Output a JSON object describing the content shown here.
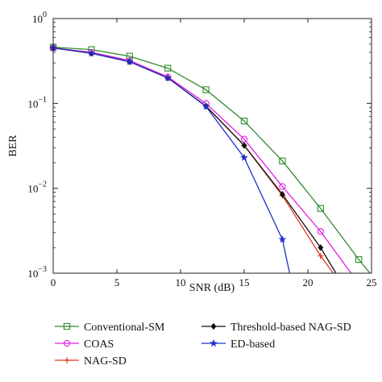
{
  "chart_data": {
    "type": "line",
    "xlabel": "SNR (dB)",
    "ylabel": "BER",
    "xlim": [
      0,
      25
    ],
    "ylim": [
      0.001,
      1
    ],
    "yscale": "log",
    "grid": false,
    "legend_position": "bottom",
    "x_ticks": [
      0,
      5,
      10,
      15,
      20,
      25
    ],
    "x_tick_labels": [
      "0",
      "5",
      "10",
      "15",
      "20",
      "25"
    ],
    "y_ticks": [
      0.001,
      0.01,
      0.1,
      1
    ],
    "y_tick_labels": [
      {
        "base": "10",
        "exp": "−3"
      },
      {
        "base": "10",
        "exp": "−2"
      },
      {
        "base": "10",
        "exp": "−1"
      },
      {
        "base": "10",
        "exp": "0"
      }
    ],
    "series": [
      {
        "name": "Conventional-SM",
        "color": "#2e8b2e",
        "marker": "square",
        "x": [
          0,
          3,
          6,
          9,
          12,
          15,
          18,
          21,
          24,
          25
        ],
        "y": [
          0.46,
          0.43,
          0.36,
          0.26,
          0.145,
          0.062,
          0.021,
          0.0058,
          0.00145,
          0.00095
        ],
        "marker_x": [
          0,
          3,
          6,
          9,
          12,
          15,
          18,
          21,
          24
        ],
        "marker_y": [
          0.46,
          0.43,
          0.36,
          0.26,
          0.145,
          0.062,
          0.021,
          0.0058,
          0.00145
        ]
      },
      {
        "name": "COAS",
        "color": "#e020e0",
        "marker": "circle",
        "x": [
          0,
          3,
          6,
          9,
          12,
          15,
          18,
          21,
          23.5
        ],
        "y": [
          0.45,
          0.4,
          0.32,
          0.205,
          0.1,
          0.038,
          0.0105,
          0.0031,
          0.00095
        ],
        "marker_x": [
          0,
          3,
          6,
          9,
          12,
          15,
          18,
          21
        ],
        "marker_y": [
          0.45,
          0.4,
          0.32,
          0.205,
          0.1,
          0.038,
          0.0105,
          0.0031
        ]
      },
      {
        "name": "NAG-SD",
        "color": "#e03a1e",
        "marker": "plus",
        "x": [
          0,
          3,
          6,
          9,
          12,
          15,
          18,
          21,
          22.1
        ],
        "y": [
          0.45,
          0.39,
          0.31,
          0.2,
          0.093,
          0.032,
          0.0082,
          0.0016,
          0.00095
        ],
        "marker_x": [
          0,
          3,
          6,
          9,
          12,
          15,
          18,
          21
        ],
        "marker_y": [
          0.45,
          0.39,
          0.31,
          0.2,
          0.093,
          0.032,
          0.0082,
          0.0016
        ]
      },
      {
        "name": "Threshold-based NAG-SD",
        "color": "#111111",
        "marker": "diamond",
        "x": [
          0,
          3,
          6,
          9,
          12,
          15,
          18,
          21,
          22.3
        ],
        "y": [
          0.45,
          0.39,
          0.31,
          0.2,
          0.093,
          0.032,
          0.0085,
          0.002,
          0.00095
        ],
        "marker_x": [
          0,
          3,
          6,
          9,
          12,
          15,
          18,
          21
        ],
        "marker_y": [
          0.45,
          0.39,
          0.31,
          0.2,
          0.093,
          0.032,
          0.0085,
          0.002
        ]
      },
      {
        "name": "ED-based",
        "color": "#2030c8",
        "marker": "star",
        "x": [
          0,
          3,
          6,
          9,
          12,
          15,
          18,
          18.6
        ],
        "y": [
          0.45,
          0.39,
          0.31,
          0.2,
          0.092,
          0.023,
          0.0025,
          0.00095
        ],
        "marker_x": [
          0,
          3,
          6,
          9,
          12,
          15,
          18
        ],
        "marker_y": [
          0.45,
          0.39,
          0.31,
          0.2,
          0.092,
          0.023,
          0.0025
        ]
      }
    ]
  }
}
